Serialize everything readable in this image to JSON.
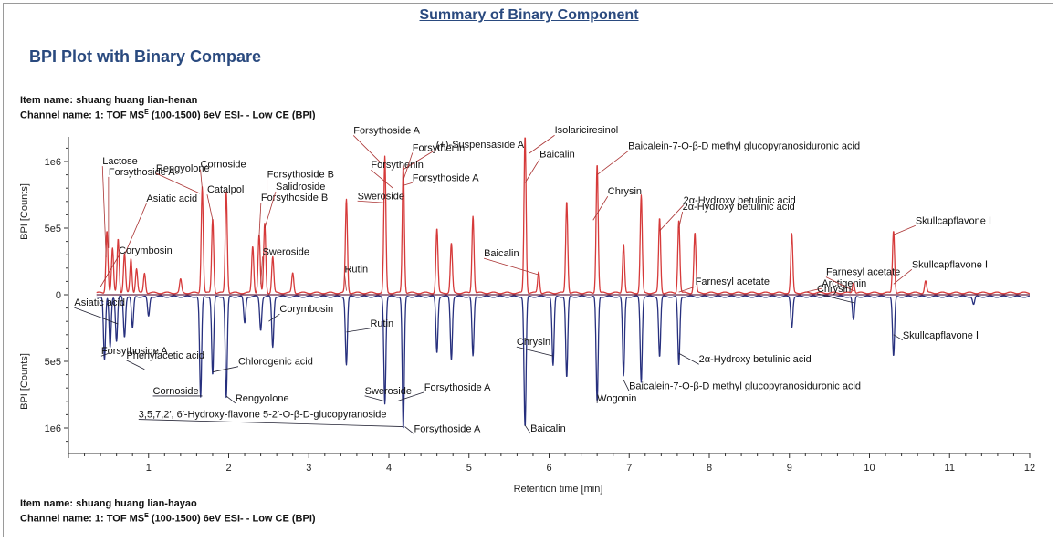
{
  "header": {
    "summary_title": "Summary of Binary Component",
    "section_title": "BPI Plot with Binary Compare"
  },
  "top_sample": {
    "item_label": "Item name: shuang huang lian-henan",
    "channel_prefix": "Channel name: 1: TOF MS",
    "channel_superscript": "E",
    "channel_suffix": " (100-1500) 6eV ESI- - Low CE (BPI)"
  },
  "bottom_sample": {
    "item_label": "Item name: shuang huang lian-hayao",
    "channel_prefix": "Channel name: 1: TOF MS",
    "channel_superscript": "E",
    "channel_suffix": " (100-1500) 6eV ESI- - Low CE (BPI)"
  },
  "chart_data": {
    "type": "line",
    "title": "BPI Plot with Binary Compare",
    "xlabel": "Retention time [min]",
    "ylabel_top": "BPI [Counts]",
    "ylabel_bottom": "BPI [Counts]",
    "xlim": [
      0,
      12
    ],
    "x_ticks": [
      "1",
      "2",
      "3",
      "4",
      "5",
      "6",
      "7",
      "8",
      "9",
      "10",
      "11",
      "12"
    ],
    "ylim_top": [
      0,
      1200000
    ],
    "ylim_bottom": [
      0,
      1200000
    ],
    "y_tick_values": [
      0,
      500000,
      1000000
    ],
    "y_tick_labels_top": [
      "1e6",
      "5e5",
      "0"
    ],
    "y_tick_labels_bottom": [
      "5e5",
      "1e6"
    ],
    "series_colors": {
      "top": "#d63a3a",
      "bottom": "#27307e"
    },
    "series": [
      {
        "name": "shuang huang lian-henan",
        "position": "top",
        "peaks": [
          [
            0.48,
            470000
          ],
          [
            0.55,
            330000
          ],
          [
            0.62,
            410000
          ],
          [
            0.7,
            290000
          ],
          [
            0.78,
            260000
          ],
          [
            0.85,
            180000
          ],
          [
            0.95,
            150000
          ],
          [
            1.4,
            100000
          ],
          [
            1.67,
            800000
          ],
          [
            1.8,
            560000
          ],
          [
            1.97,
            760000
          ],
          [
            2.3,
            350000
          ],
          [
            2.38,
            440000
          ],
          [
            2.45,
            520000
          ],
          [
            2.55,
            270000
          ],
          [
            2.8,
            150000
          ],
          [
            3.47,
            700000
          ],
          [
            3.95,
            1020000
          ],
          [
            4.18,
            970000
          ],
          [
            4.6,
            480000
          ],
          [
            4.78,
            370000
          ],
          [
            5.05,
            580000
          ],
          [
            5.7,
            1180000
          ],
          [
            5.87,
            160000
          ],
          [
            6.22,
            690000
          ],
          [
            6.6,
            970000
          ],
          [
            6.93,
            370000
          ],
          [
            7.15,
            730000
          ],
          [
            7.38,
            560000
          ],
          [
            7.62,
            550000
          ],
          [
            7.82,
            450000
          ],
          [
            9.03,
            440000
          ],
          [
            9.8,
            80000
          ],
          [
            10.3,
            470000
          ],
          [
            10.7,
            90000
          ]
        ]
      },
      {
        "name": "shuang huang lian-hayao",
        "position": "bottom",
        "peaks": [
          [
            0.45,
            480000
          ],
          [
            0.52,
            380000
          ],
          [
            0.6,
            340000
          ],
          [
            0.7,
            300000
          ],
          [
            0.8,
            240000
          ],
          [
            1.0,
            150000
          ],
          [
            1.65,
            760000
          ],
          [
            1.8,
            590000
          ],
          [
            1.97,
            760000
          ],
          [
            2.2,
            200000
          ],
          [
            2.4,
            250000
          ],
          [
            2.55,
            380000
          ],
          [
            3.47,
            510000
          ],
          [
            3.95,
            800000
          ],
          [
            4.18,
            1000000
          ],
          [
            4.6,
            420000
          ],
          [
            4.78,
            470000
          ],
          [
            5.05,
            450000
          ],
          [
            5.7,
            980000
          ],
          [
            6.05,
            520000
          ],
          [
            6.22,
            610000
          ],
          [
            6.6,
            790000
          ],
          [
            6.93,
            600000
          ],
          [
            7.15,
            640000
          ],
          [
            7.38,
            450000
          ],
          [
            7.62,
            520000
          ],
          [
            9.03,
            230000
          ],
          [
            9.8,
            180000
          ],
          [
            10.3,
            450000
          ],
          [
            11.3,
            60000
          ]
        ]
      }
    ],
    "annotations": [
      {
        "text": "Lactose",
        "series": "top",
        "x": 0.47,
        "y": 280000
      },
      {
        "text": "Forsythoside A",
        "series": "top",
        "x": 0.5,
        "y": 350000
      },
      {
        "text": "Asiatic acid",
        "series": "top",
        "x": 0.7,
        "y": 300000
      },
      {
        "text": "Corymbosin",
        "series": "top",
        "x": 0.4,
        "y": 60000
      },
      {
        "text": "Rengyolone",
        "series": "top",
        "x": 1.64,
        "y": 760000
      },
      {
        "text": "Cornoside",
        "series": "top",
        "x": 1.67,
        "y": 790000
      },
      {
        "text": "Catalpol",
        "series": "top",
        "x": 1.8,
        "y": 560000
      },
      {
        "text": "Forsythoside B",
        "series": "top",
        "x": 2.48,
        "y": 660000
      },
      {
        "text": "Forsythoside B",
        "series": "top",
        "x": 2.38,
        "y": 430000
      },
      {
        "text": "Salidroside",
        "series": "top",
        "x": 2.45,
        "y": 500000
      },
      {
        "text": "Sweroside",
        "series": "top",
        "x": 2.4,
        "y": 80000
      },
      {
        "text": "Rutin",
        "series": "top",
        "x": 3.47,
        "y": 30000
      },
      {
        "text": "Forsythoside A",
        "series": "top",
        "x": 3.9,
        "y": 990000
      },
      {
        "text": "(+)-Suspensaside A",
        "series": "top",
        "x": 4.18,
        "y": 940000
      },
      {
        "text": "Forsythenin",
        "series": "top",
        "x": 4.05,
        "y": 800000
      },
      {
        "text": "Sweroside",
        "series": "top",
        "x": 3.95,
        "y": 690000
      },
      {
        "text": "Forsythenin",
        "series": "top",
        "x": 4.18,
        "y": 860000
      },
      {
        "text": "Forsythoside A",
        "series": "top",
        "x": 4.18,
        "y": 820000
      },
      {
        "text": "Isolariciresinol",
        "series": "top",
        "x": 5.75,
        "y": 1060000
      },
      {
        "text": "Baicalin",
        "series": "top",
        "x": 5.7,
        "y": 840000
      },
      {
        "text": "Baicalin",
        "series": "top",
        "x": 5.87,
        "y": 150000
      },
      {
        "text": "Baicalein-7-O-β-D methyl glucopyranosiduronic acid",
        "series": "top",
        "x": 6.6,
        "y": 900000
      },
      {
        "text": "Chrysin",
        "series": "top",
        "x": 6.55,
        "y": 560000
      },
      {
        "text": "2α-Hydroxy betulinic acid",
        "series": "top",
        "x": 7.38,
        "y": 480000
      },
      {
        "text": "2α-Hydroxy betulinic acid",
        "series": "top",
        "x": 7.62,
        "y": 500000
      },
      {
        "text": "Farnesyl acetate",
        "series": "top",
        "x": 7.62,
        "y": 20000
      },
      {
        "text": "Arctigenin",
        "series": "top",
        "x": 9.2,
        "y": 20000
      },
      {
        "text": "Farnesyl acetate",
        "series": "top",
        "x": 9.8,
        "y": 30000
      },
      {
        "text": "Skullcapflavone Ⅰ",
        "series": "top",
        "x": 10.3,
        "y": 450000
      },
      {
        "text": "Skullcapflavone Ⅰ",
        "series": "top",
        "x": 10.3,
        "y": 80000
      },
      {
        "text": "Chrysin",
        "series": "bottom",
        "x": 9.8,
        "y": 60000
      },
      {
        "text": "Asiatic acid",
        "series": "bottom",
        "x": 0.62,
        "y": 220000
      },
      {
        "text": "Corymbosin",
        "series": "bottom",
        "x": 2.5,
        "y": 200000
      },
      {
        "text": "Forsythoside A",
        "series": "bottom",
        "x": 0.5,
        "y": 440000
      },
      {
        "text": "Phenylacetic acid",
        "series": "bottom",
        "x": 0.95,
        "y": 560000
      },
      {
        "text": "Chlorogenic acid",
        "series": "bottom",
        "x": 1.8,
        "y": 580000
      },
      {
        "text": "Cornoside",
        "series": "bottom",
        "x": 1.67,
        "y": 760000
      },
      {
        "text": "Rengyolone",
        "series": "bottom",
        "x": 1.97,
        "y": 760000
      },
      {
        "text": "Rutin",
        "series": "bottom",
        "x": 3.47,
        "y": 280000
      },
      {
        "text": "Sweroside",
        "series": "bottom",
        "x": 3.95,
        "y": 800000
      },
      {
        "text": "Forsythoside A",
        "series": "bottom",
        "x": 4.1,
        "y": 800000
      },
      {
        "text": "3,5,7,2′, 6′-Hydroxy-flavone 5-2′-O-β-D-glucopyranoside",
        "series": "bottom",
        "x": 4.18,
        "y": 990000
      },
      {
        "text": "Forsythoside A",
        "series": "bottom",
        "x": 4.2,
        "y": 990000
      },
      {
        "text": "Chrysin",
        "series": "bottom",
        "x": 6.05,
        "y": 460000
      },
      {
        "text": "Baicalin",
        "series": "bottom",
        "x": 5.7,
        "y": 980000
      },
      {
        "text": "Wogonin",
        "series": "bottom",
        "x": 6.6,
        "y": 780000
      },
      {
        "text": "Baicalein-7-O-β-D methyl glucopyranosiduronic acid",
        "series": "bottom",
        "x": 6.93,
        "y": 640000
      },
      {
        "text": "2α-Hydroxy betulinic acid",
        "series": "bottom",
        "x": 7.62,
        "y": 440000
      },
      {
        "text": "Skullcapflavone Ⅰ",
        "series": "bottom",
        "x": 10.3,
        "y": 300000
      }
    ]
  }
}
